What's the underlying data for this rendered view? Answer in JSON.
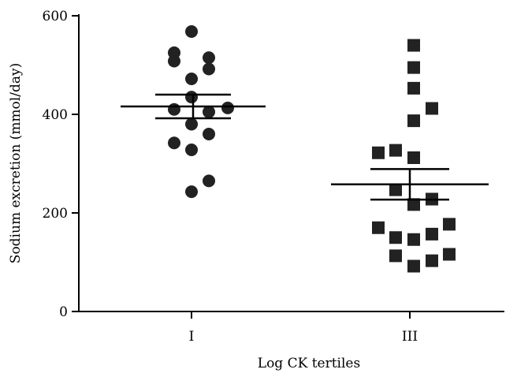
{
  "chart_data": {
    "type": "scatter",
    "xlabel": "Log CK tertiles",
    "ylabel": "Sodium excretion (mmol/day)",
    "ylim": [
      0,
      600
    ],
    "yticks": [
      0,
      200,
      400,
      600
    ],
    "categories": [
      "I",
      "III"
    ],
    "grid": false,
    "series": [
      {
        "category": "I",
        "marker": "circle",
        "values": [
          568,
          525,
          515,
          508,
          492,
          472,
          435,
          413,
          410,
          405,
          380,
          360,
          342,
          328,
          265,
          243
        ],
        "mean": 416,
        "sem_upper": 440,
        "sem_lower": 392
      },
      {
        "category": "III",
        "marker": "square",
        "values": [
          540,
          495,
          453,
          412,
          387,
          327,
          322,
          312,
          247,
          228,
          217,
          177,
          170,
          157,
          150,
          146,
          116,
          113,
          103,
          92
        ],
        "mean": 258,
        "sem_upper": 289,
        "sem_lower": 227
      }
    ]
  }
}
